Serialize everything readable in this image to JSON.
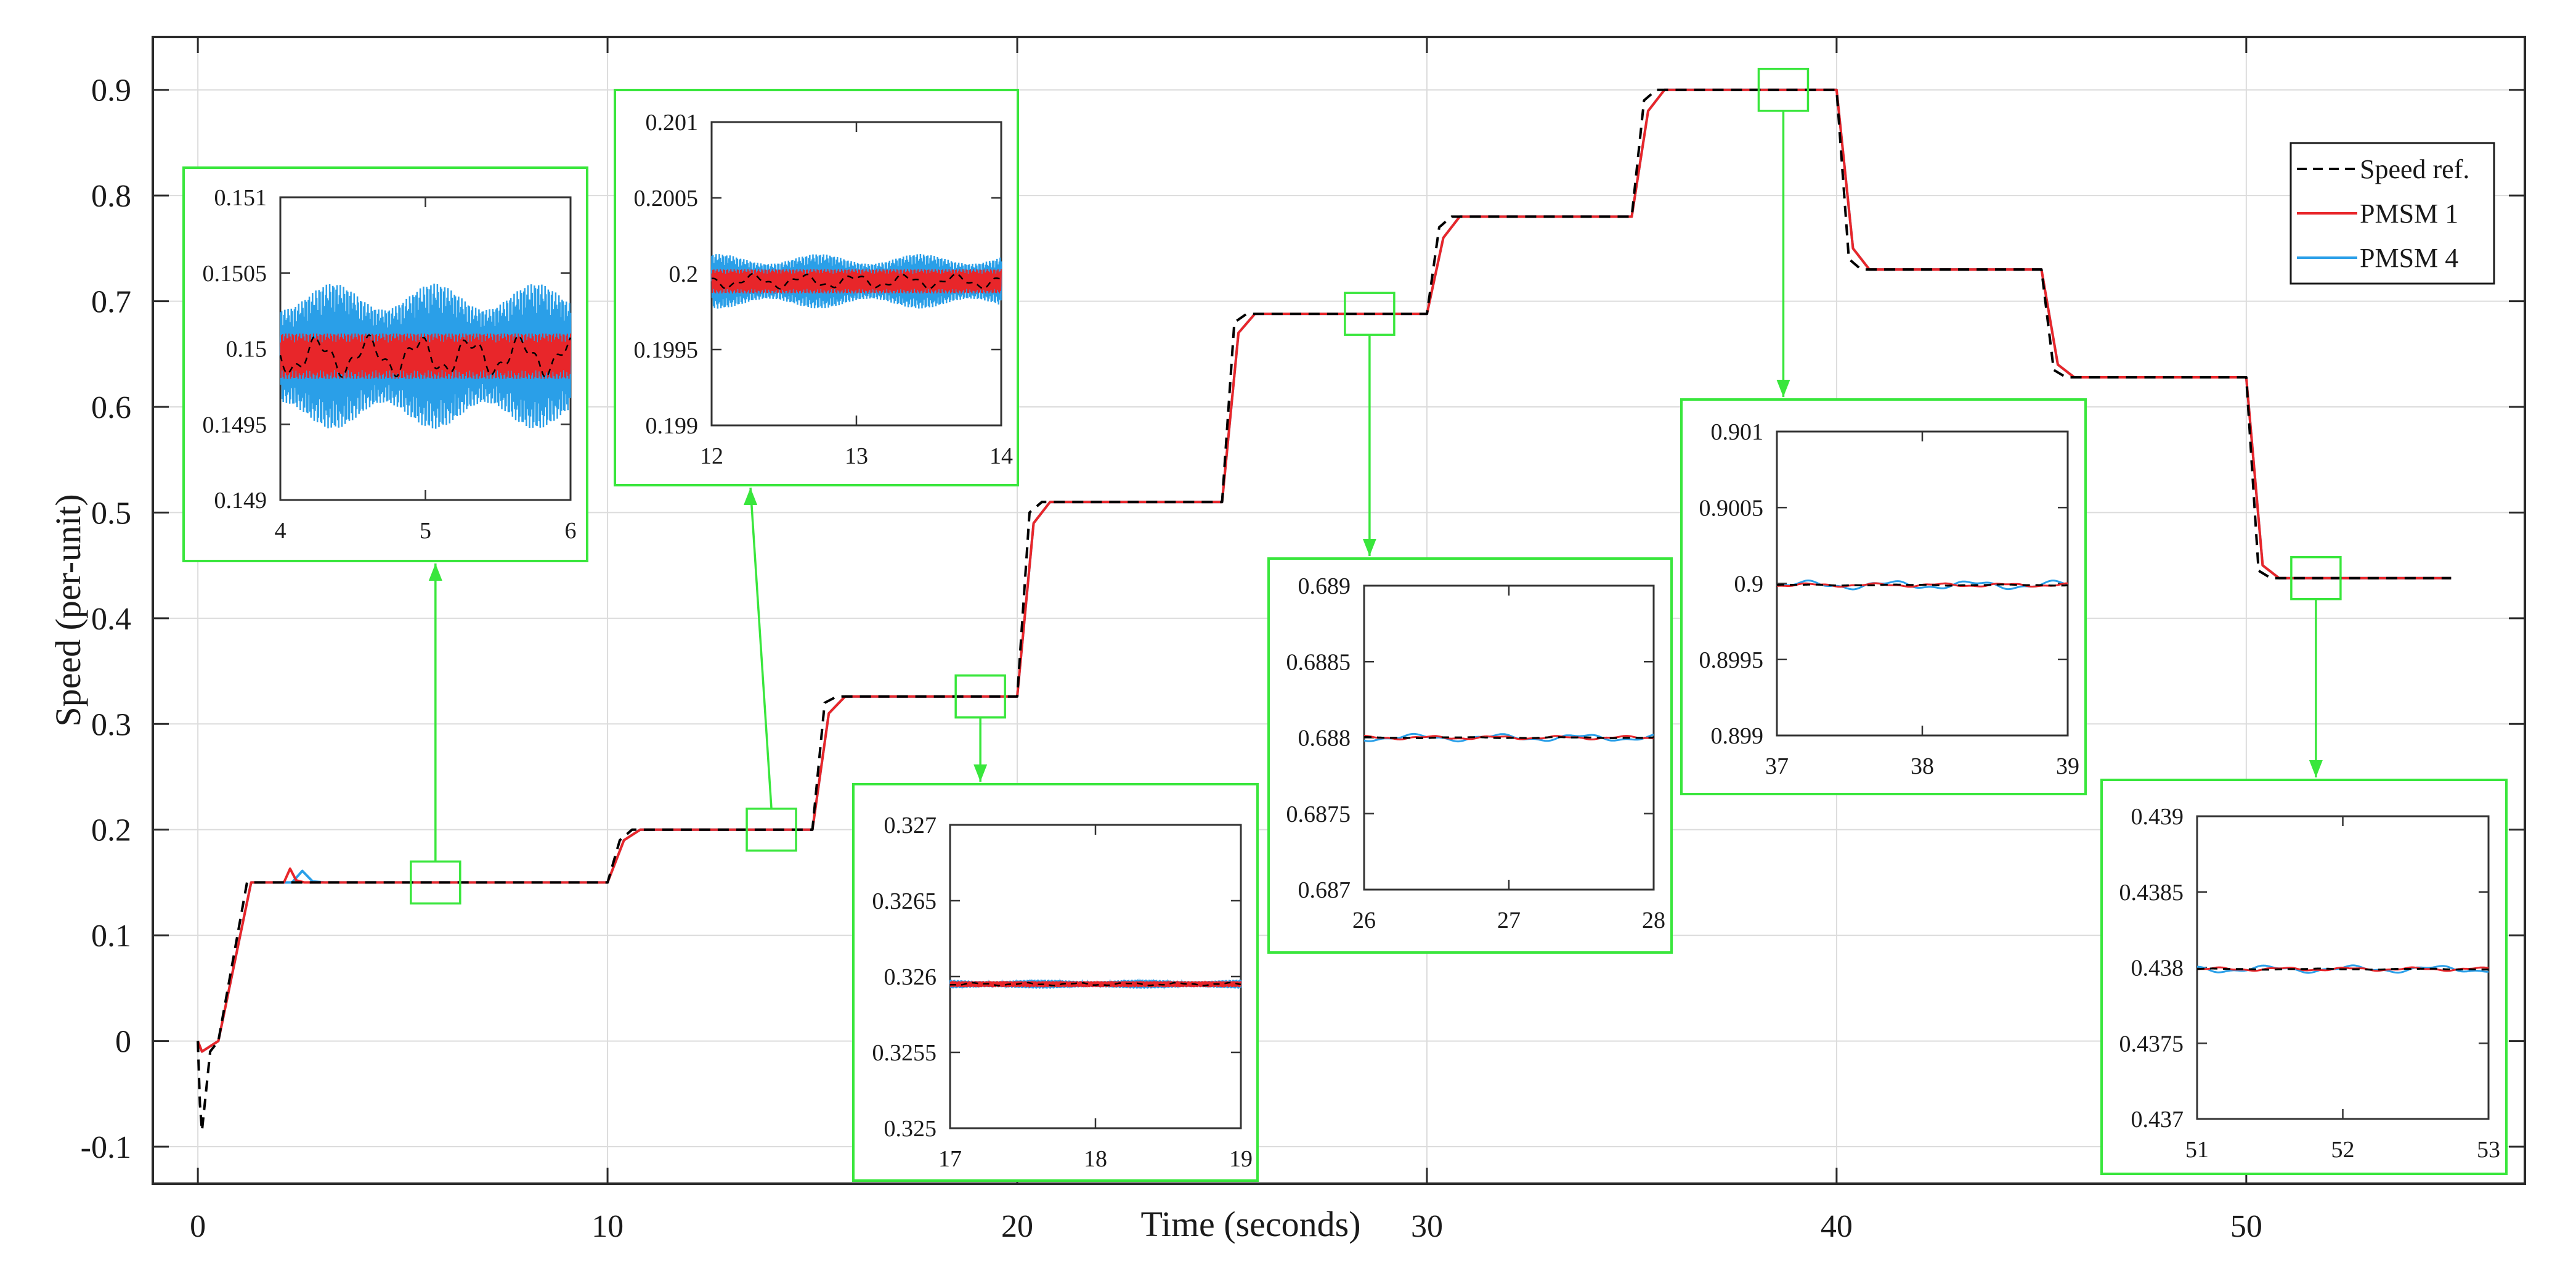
{
  "chart_data": {
    "type": "line",
    "xlabel": "Time (seconds)",
    "ylabel": "Speed (per-unit)",
    "xlim": [
      -1.1,
      56.8
    ],
    "ylim": [
      -0.135,
      0.95
    ],
    "xticks": [
      0,
      10,
      20,
      30,
      40,
      50
    ],
    "yticks": [
      -0.1,
      0,
      0.1,
      0.2,
      0.3,
      0.4,
      0.5,
      0.6,
      0.7,
      0.8,
      0.9
    ],
    "grid": true,
    "legend_position": "top-right",
    "series": [
      {
        "name": "Speed ref.",
        "style": "dashed",
        "color": "#000000",
        "x": [
          0,
          0.05,
          0.1,
          0.3,
          0.5,
          1.2,
          10,
          10.3,
          10.6,
          15,
          15.3,
          15.6,
          20,
          20.3,
          20.6,
          25,
          25.3,
          25.6,
          30,
          30.3,
          30.6,
          35,
          35.3,
          35.6,
          40,
          40.3,
          40.6,
          45,
          45.3,
          45.6,
          50,
          50.3,
          50.6,
          55
        ],
        "y": [
          0,
          -0.06,
          -0.085,
          -0.01,
          0,
          0.15,
          0.15,
          0.19,
          0.2,
          0.2,
          0.32,
          0.326,
          0.326,
          0.5,
          0.51,
          0.51,
          0.68,
          0.688,
          0.688,
          0.77,
          0.78,
          0.78,
          0.89,
          0.9,
          0.9,
          0.74,
          0.73,
          0.73,
          0.635,
          0.628,
          0.628,
          0.445,
          0.438,
          0.438
        ]
      },
      {
        "name": "PMSM 1",
        "style": "solid",
        "color": "#e8262a",
        "x": [
          0,
          0.1,
          0.5,
          1.3,
          2.1,
          2.25,
          2.4,
          2.6,
          3,
          10,
          10.4,
          10.8,
          15,
          15.4,
          15.8,
          20,
          20.4,
          20.8,
          25,
          25.4,
          25.8,
          30,
          30.4,
          30.8,
          35,
          35.4,
          35.8,
          40,
          40.4,
          40.8,
          45,
          45.4,
          45.8,
          50,
          50.4,
          50.8,
          55
        ],
        "y": [
          0,
          -0.01,
          0,
          0.15,
          0.15,
          0.163,
          0.152,
          0.15,
          0.15,
          0.15,
          0.19,
          0.2,
          0.2,
          0.31,
          0.326,
          0.326,
          0.49,
          0.51,
          0.51,
          0.67,
          0.688,
          0.688,
          0.76,
          0.78,
          0.78,
          0.88,
          0.9,
          0.9,
          0.75,
          0.73,
          0.73,
          0.64,
          0.628,
          0.628,
          0.45,
          0.438,
          0.438
        ]
      },
      {
        "name": "PMSM 4",
        "style": "solid",
        "color": "#2a9fe8",
        "x": [
          0,
          0.1,
          0.5,
          1.3,
          2.3,
          2.55,
          2.8,
          3.1,
          10,
          10.4,
          10.8,
          15,
          15.4,
          15.8,
          20,
          20.4,
          20.8,
          25,
          25.4,
          25.8,
          30,
          30.4,
          30.8,
          35,
          35.4,
          35.8,
          40,
          40.4,
          40.8,
          45,
          45.4,
          45.8,
          50,
          50.4,
          50.8,
          55
        ],
        "y": [
          0,
          -0.01,
          0,
          0.15,
          0.15,
          0.161,
          0.151,
          0.15,
          0.15,
          0.19,
          0.2,
          0.2,
          0.31,
          0.326,
          0.326,
          0.49,
          0.51,
          0.51,
          0.67,
          0.688,
          0.688,
          0.76,
          0.78,
          0.78,
          0.88,
          0.9,
          0.9,
          0.75,
          0.73,
          0.73,
          0.64,
          0.628,
          0.628,
          0.45,
          0.438,
          0.438
        ]
      }
    ],
    "zoom_insets": [
      {
        "id": "inset-1",
        "x_range": [
          4,
          6
        ],
        "y_range": [
          0.149,
          0.151
        ],
        "xticks": [
          "4",
          "5",
          "6"
        ],
        "yticks": [
          "0.149",
          "0.1495",
          "0.15",
          "0.1505",
          "0.151"
        ],
        "center": 0.14995,
        "ref_amp": 0.00014,
        "red_amp": 0.00015,
        "blue_amp": 0.00048,
        "blue_band": true,
        "source_time": 5.8,
        "source_speed": 0.15
      },
      {
        "id": "inset-2",
        "x_range": [
          12,
          14
        ],
        "y_range": [
          0.199,
          0.201
        ],
        "xticks": [
          "12",
          "13",
          "14"
        ],
        "yticks": [
          "0.199",
          "0.1995",
          "0.2",
          "0.2005",
          "0.201"
        ],
        "center": 0.19995,
        "ref_amp": 5e-05,
        "red_amp": 8e-05,
        "blue_amp": 0.00018,
        "blue_band": true,
        "source_time": 14,
        "source_speed": 0.2
      },
      {
        "id": "inset-3",
        "x_range": [
          17,
          19
        ],
        "y_range": [
          0.325,
          0.327
        ],
        "xticks": [
          "17",
          "18",
          "19"
        ],
        "yticks": [
          "0.325",
          "0.3255",
          "0.326",
          "0.3265",
          "0.327"
        ],
        "center": 0.32595,
        "ref_amp": 1e-05,
        "red_amp": 2e-05,
        "blue_amp": 3e-05,
        "blue_band": true,
        "source_time": 19.1,
        "source_speed": 0.326
      },
      {
        "id": "inset-4",
        "x_range": [
          26,
          28
        ],
        "y_range": [
          0.687,
          0.689
        ],
        "xticks": [
          "26",
          "27",
          "28"
        ],
        "yticks": [
          "0.687",
          "0.6875",
          "0.688",
          "0.6885",
          "0.689"
        ],
        "center": 0.688,
        "ref_amp": 4e-06,
        "red_amp": 1.2e-05,
        "blue_amp": 2.5e-05,
        "blue_band": false,
        "source_time": 28.6,
        "source_speed": 0.688
      },
      {
        "id": "inset-5",
        "x_range": [
          37,
          39
        ],
        "y_range": [
          0.899,
          0.901
        ],
        "xticks": [
          "37",
          "38",
          "39"
        ],
        "yticks": [
          "0.899",
          "0.8995",
          "0.9",
          "0.9005",
          "0.901"
        ],
        "center": 0.89999,
        "ref_amp": 4e-06,
        "red_amp": 1.2e-05,
        "blue_amp": 3e-05,
        "blue_band": false,
        "source_time": 38.7,
        "source_speed": 0.9
      },
      {
        "id": "inset-6",
        "x_range": [
          51,
          53
        ],
        "y_range": [
          0.437,
          0.439
        ],
        "xticks": [
          "51",
          "52",
          "53"
        ],
        "yticks": [
          "0.437",
          "0.4375",
          "0.438",
          "0.4385",
          "0.439"
        ],
        "center": 0.43799,
        "ref_amp": 4e-06,
        "red_amp": 1.2e-05,
        "blue_amp": 2.5e-05,
        "blue_band": false,
        "source_time": 51.7,
        "source_speed": 0.438
      }
    ]
  },
  "colors": {
    "reference": "#000000",
    "pmsm1": "#e8262a",
    "pmsm4": "#2a9fe8",
    "zoom_box": "#39e63c",
    "grid": "#dcdcdc"
  }
}
